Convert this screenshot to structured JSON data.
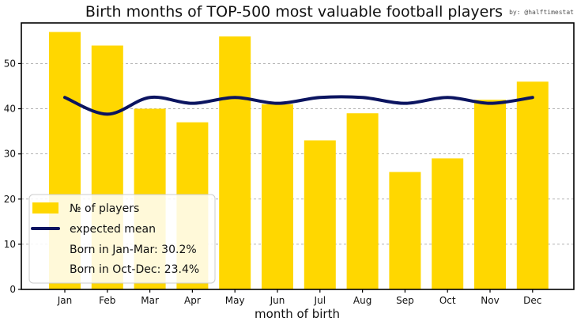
{
  "chart_data": {
    "type": "bar",
    "title": "Birth months of TOP-500 most valuable football players",
    "credit": "by: @halftimestat",
    "xlabel": "month of birth",
    "ylabel": "",
    "categories": [
      "Jan",
      "Feb",
      "Mar",
      "Apr",
      "May",
      "Jun",
      "Jul",
      "Aug",
      "Sep",
      "Oct",
      "Nov",
      "Dec"
    ],
    "series": [
      {
        "name": "№ of players",
        "kind": "bar",
        "color": "#FFD700",
        "values": [
          57,
          54,
          40,
          37,
          56,
          41,
          33,
          39,
          26,
          29,
          42,
          46
        ]
      },
      {
        "name": "expected mean",
        "kind": "line",
        "color": "#0B1460",
        "values": [
          42.5,
          38.8,
          42.5,
          41.2,
          42.5,
          41.2,
          42.5,
          42.5,
          41.2,
          42.5,
          41.2,
          42.5
        ]
      }
    ],
    "ylim": [
      0,
      59
    ],
    "yticks": [
      0,
      10,
      20,
      30,
      40,
      50
    ],
    "grid": true,
    "legend": {
      "position": "bottom-left",
      "notes": [
        "Born in Jan-Mar: 30.2%",
        "Born in Oct-Dec: 23.4%"
      ]
    }
  }
}
